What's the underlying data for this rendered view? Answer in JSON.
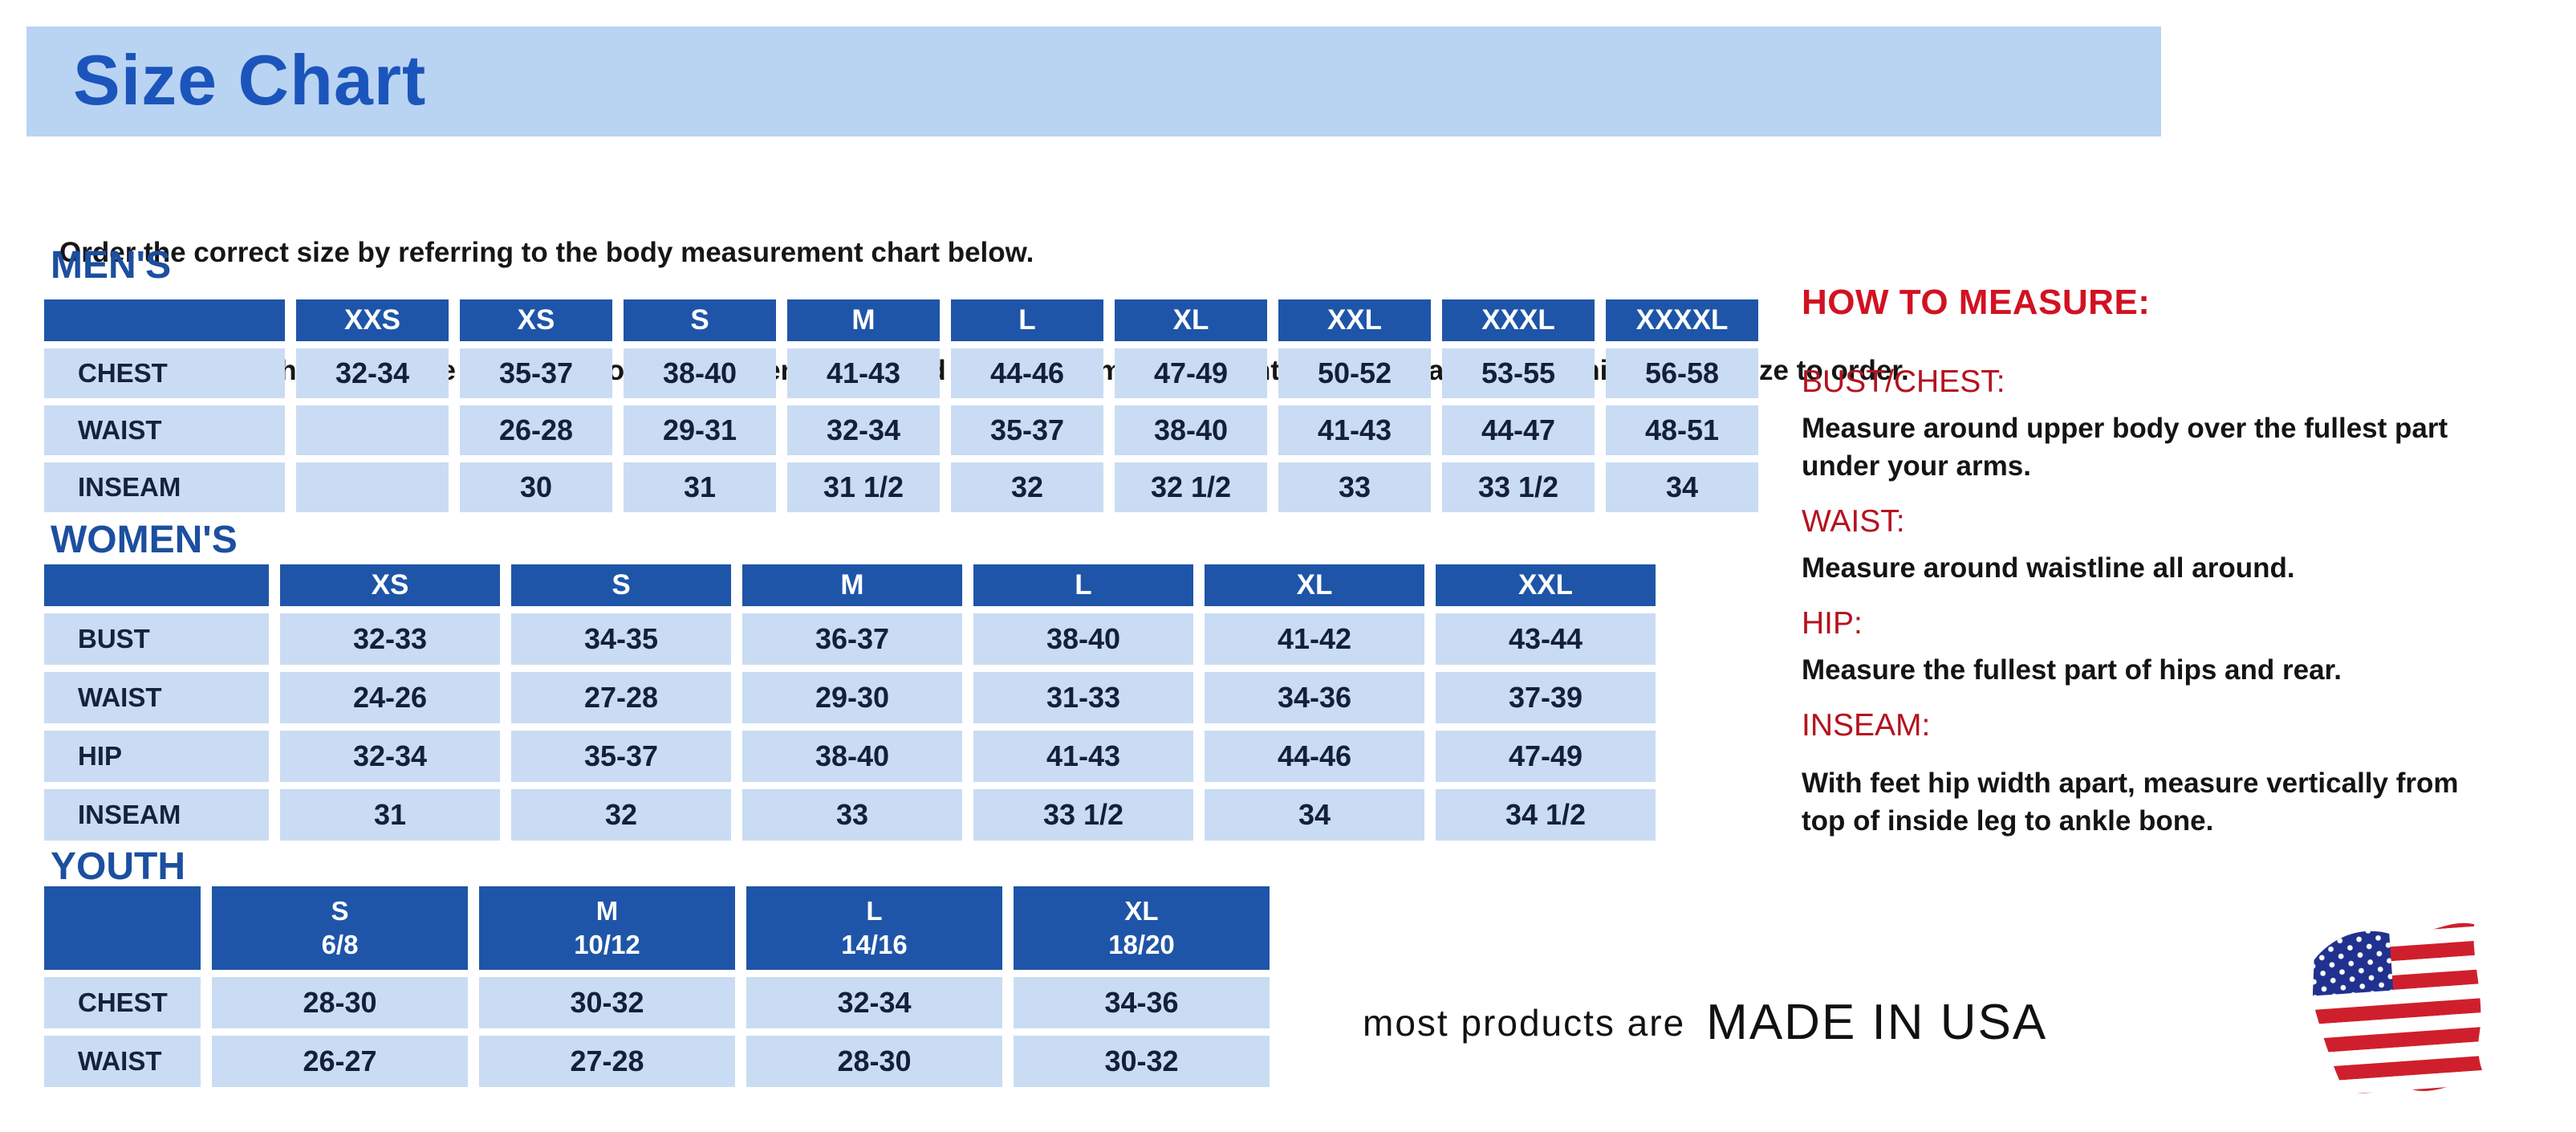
{
  "page": {
    "title": "Size Chart",
    "intro_line1": "Order the correct size by referring to the body measurement chart below.",
    "intro_line2": "Measurements shown on size chart are body measurements.  Find your body measurements on the chart to determine which size to order."
  },
  "tables": {
    "mens": {
      "heading": "MEN'S",
      "columns": [
        "XXS",
        "XS",
        "S",
        "M",
        "L",
        "XL",
        "XXL",
        "XXXL",
        "XXXXL"
      ],
      "rows": [
        {
          "label": "CHEST",
          "values": [
            "32-34",
            "35-37",
            "38-40",
            "41-43",
            "44-46",
            "47-49",
            "50-52",
            "53-55",
            "56-58"
          ]
        },
        {
          "label": "WAIST",
          "values": [
            "",
            "26-28",
            "29-31",
            "32-34",
            "35-37",
            "38-40",
            "41-43",
            "44-47",
            "48-51"
          ]
        },
        {
          "label": "INSEAM",
          "values": [
            "",
            "30",
            "31",
            "31 1/2",
            "32",
            "32 1/2",
            "33",
            "33 1/2",
            "34"
          ]
        }
      ]
    },
    "womens": {
      "heading": "WOMEN'S",
      "columns": [
        "XS",
        "S",
        "M",
        "L",
        "XL",
        "XXL"
      ],
      "rows": [
        {
          "label": "BUST",
          "values": [
            "32-33",
            "34-35",
            "36-37",
            "38-40",
            "41-42",
            "43-44"
          ]
        },
        {
          "label": "WAIST",
          "values": [
            "24-26",
            "27-28",
            "29-30",
            "31-33",
            "34-36",
            "37-39"
          ]
        },
        {
          "label": "HIP",
          "values": [
            "32-34",
            "35-37",
            "38-40",
            "41-43",
            "44-46",
            "47-49"
          ]
        },
        {
          "label": "INSEAM",
          "values": [
            "31",
            "32",
            "33",
            "33 1/2",
            "34",
            "34 1/2"
          ]
        }
      ]
    },
    "youth": {
      "heading": "YOUTH",
      "columns": [
        [
          "S",
          "6/8"
        ],
        [
          "M",
          "10/12"
        ],
        [
          "L",
          "14/16"
        ],
        [
          "XL",
          "18/20"
        ]
      ],
      "rows": [
        {
          "label": "CHEST",
          "values": [
            "28-30",
            "30-32",
            "32-34",
            "34-36"
          ]
        },
        {
          "label": "WAIST",
          "values": [
            "26-27",
            "27-28",
            "28-30",
            "30-32"
          ]
        }
      ]
    }
  },
  "how_to_measure": {
    "heading": "HOW TO MEASURE:",
    "items": [
      {
        "term": "BUST/CHEST:",
        "description": "Measure around upper body over the fullest part under your arms."
      },
      {
        "term": "WAIST:",
        "description": "Measure around waistline all around."
      },
      {
        "term": "HIP:",
        "description": "Measure the fullest part of hips and rear."
      },
      {
        "term": "INSEAM:",
        "description": "With feet hip width apart, measure vertically from top of inside leg to ankle bone."
      }
    ]
  },
  "footer": {
    "made_in_prefix": "most products are",
    "made_in_main": "MADE IN USA",
    "flag_icon": "us-flag-icon"
  },
  "colors": {
    "band_bg": "#b9d3f2",
    "title_blue": "#1b55bb",
    "heading_blue": "#1c4f9f",
    "header_cell_blue": "#1e55a8",
    "cell_light_blue": "#c9dcf3",
    "accent_red": "#d11222",
    "term_red": "#b5121f",
    "flag_red": "#cf1f2c",
    "flag_blue": "#20318f"
  }
}
